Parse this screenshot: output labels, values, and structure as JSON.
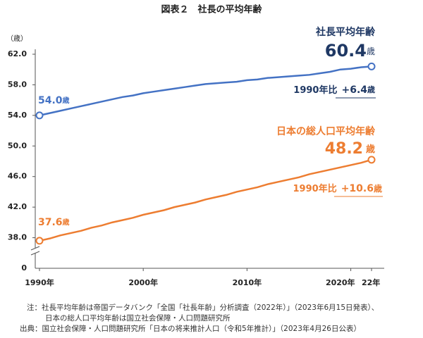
{
  "chart_data": {
    "type": "line",
    "title": "図表２　社長の平均年齢",
    "y_label": "（歳）",
    "y_break_label": "0",
    "unit": "歳",
    "change_prefix": "1990年比",
    "x": [
      1990,
      1991,
      1992,
      1993,
      1994,
      1995,
      1996,
      1997,
      1998,
      1999,
      2000,
      2001,
      2002,
      2003,
      2004,
      2005,
      2006,
      2007,
      2008,
      2009,
      2010,
      2011,
      2012,
      2013,
      2014,
      2015,
      2016,
      2017,
      2018,
      2019,
      2020,
      2021,
      2022
    ],
    "xlim": [
      1990,
      2022
    ],
    "xticks": [
      {
        "value": 1990,
        "label": "1990年"
      },
      {
        "value": 2000,
        "label": "2000年"
      },
      {
        "value": 2010,
        "label": "2010年"
      },
      {
        "value": 2020,
        "label": "2020年"
      },
      {
        "value": 2022,
        "label": "22年"
      }
    ],
    "ylim": [
      34,
      62
    ],
    "yticks": [
      {
        "value": 38,
        "label": "38.0"
      },
      {
        "value": 42,
        "label": "42.0"
      },
      {
        "value": 46,
        "label": "46.0"
      },
      {
        "value": 50,
        "label": "50.0"
      },
      {
        "value": 54,
        "label": "54.0"
      },
      {
        "value": 58,
        "label": "58.0"
      },
      {
        "value": 62,
        "label": "62.0"
      }
    ],
    "grid": false,
    "series": [
      {
        "name": "社長平均年齢",
        "color": "#4472c4",
        "label_color": "#1f3864",
        "change": "+6.4",
        "values": [
          54.0,
          54.3,
          54.6,
          54.9,
          55.2,
          55.5,
          55.8,
          56.1,
          56.4,
          56.6,
          56.9,
          57.1,
          57.3,
          57.5,
          57.7,
          57.9,
          58.1,
          58.2,
          58.3,
          58.4,
          58.6,
          58.7,
          58.9,
          59.0,
          59.1,
          59.2,
          59.3,
          59.5,
          59.7,
          60.0,
          60.1,
          60.3,
          60.4
        ],
        "value_labels": [
          "54.0",
          null,
          null,
          null,
          null,
          null,
          null,
          null,
          null,
          null,
          null,
          null,
          null,
          null,
          null,
          null,
          null,
          null,
          null,
          null,
          null,
          null,
          null,
          null,
          null,
          null,
          null,
          null,
          null,
          null,
          null,
          null,
          "60.4"
        ]
      },
      {
        "name": "日本の総人口平均年齢",
        "color": "#ed7d31",
        "label_color": "#ed7d31",
        "change": "+10.6",
        "values": [
          37.6,
          37.9,
          38.3,
          38.6,
          38.9,
          39.3,
          39.6,
          40.0,
          40.3,
          40.6,
          41.0,
          41.3,
          41.6,
          42.0,
          42.3,
          42.6,
          43.0,
          43.3,
          43.6,
          44.0,
          44.3,
          44.6,
          45.0,
          45.3,
          45.6,
          45.9,
          46.3,
          46.6,
          46.9,
          47.2,
          47.5,
          47.8,
          48.2
        ],
        "value_labels": [
          "37.6",
          null,
          null,
          null,
          null,
          null,
          null,
          null,
          null,
          null,
          null,
          null,
          null,
          null,
          null,
          null,
          null,
          null,
          null,
          null,
          null,
          null,
          null,
          null,
          null,
          null,
          null,
          null,
          null,
          null,
          null,
          null,
          "48.2"
        ]
      }
    ],
    "notes": [
      "注：社長平均年齢は帝国データバンク「全国「社長年齢」分析調査（2022年）」（2023年6月15日発表）、",
      "日本の総人口平均年齢は国立社会保障・人口問題研究所",
      "出典：国立社会保障・人口問題研究所「日本の将来推計人口（令和5年推計）」（2023年4月26日公表）"
    ]
  }
}
